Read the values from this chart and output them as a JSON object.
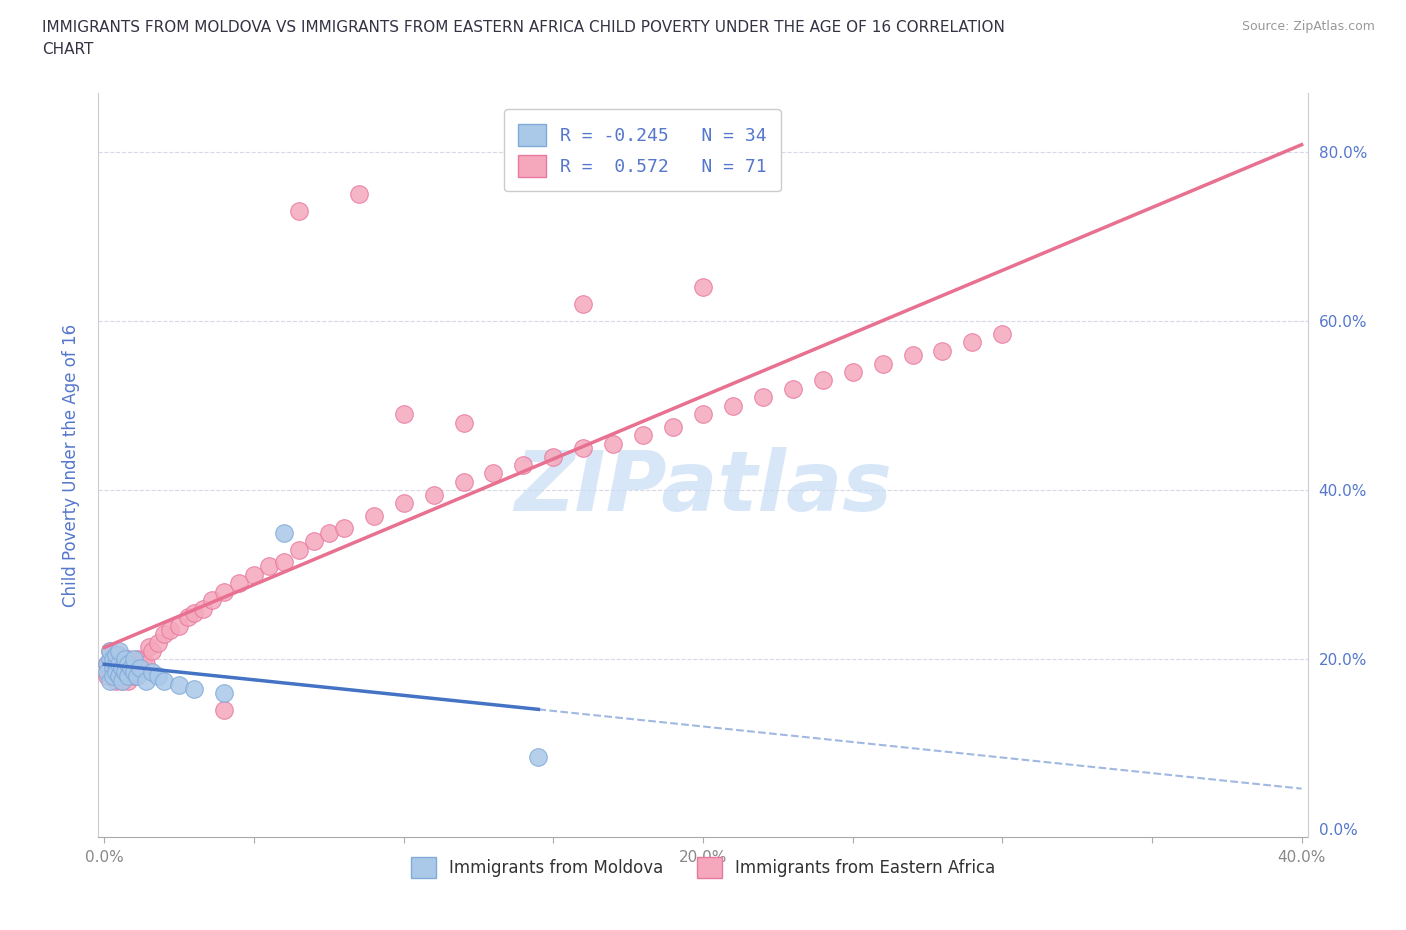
{
  "title_line1": "IMMIGRANTS FROM MOLDOVA VS IMMIGRANTS FROM EASTERN AFRICA CHILD POVERTY UNDER THE AGE OF 16 CORRELATION",
  "title_line2": "CHART",
  "source": "Source: ZipAtlas.com",
  "ylabel": "Child Poverty Under the Age of 16",
  "xlim": [
    -0.002,
    0.402
  ],
  "ylim": [
    -0.01,
    0.87
  ],
  "xticks": [
    0.0,
    0.05,
    0.1,
    0.15,
    0.2,
    0.25,
    0.3,
    0.35,
    0.4
  ],
  "xticklabels": [
    "0.0%",
    "",
    "",
    "",
    "20.0%",
    "",
    "",
    "",
    "40.0%"
  ],
  "yticks": [
    0.0,
    0.2,
    0.4,
    0.6,
    0.8
  ],
  "yticklabels": [
    "0.0%",
    "20.0%",
    "40.0%",
    "60.0%",
    "80.0%"
  ],
  "moldova_fill": "#aac8e8",
  "moldova_edge": "#80aad8",
  "eastern_fill": "#f5a8bc",
  "eastern_edge": "#e878a0",
  "line_moldova": "#4472c4",
  "line_eastern": "#e87090",
  "legend_text_1": "R = -0.245   N = 34",
  "legend_text_2": "R =  0.572   N = 71",
  "watermark": "ZIPatlas",
  "watermark_color": "#c8ddf5",
  "grid_color": "#d8d8e8",
  "tick_color": "#888888",
  "axis_color": "#5577cc",
  "title_color": "#333344",
  "background": "#ffffff",
  "moldova_x": [
    0.001,
    0.001,
    0.002,
    0.002,
    0.002,
    0.003,
    0.003,
    0.003,
    0.004,
    0.004,
    0.004,
    0.005,
    0.005,
    0.005,
    0.006,
    0.006,
    0.007,
    0.007,
    0.008,
    0.008,
    0.009,
    0.01,
    0.01,
    0.011,
    0.012,
    0.014,
    0.016,
    0.018,
    0.02,
    0.025,
    0.03,
    0.04,
    0.06,
    0.145
  ],
  "moldova_y": [
    0.195,
    0.185,
    0.2,
    0.175,
    0.21,
    0.19,
    0.2,
    0.18,
    0.195,
    0.205,
    0.185,
    0.195,
    0.18,
    0.21,
    0.19,
    0.175,
    0.2,
    0.185,
    0.195,
    0.18,
    0.19,
    0.185,
    0.2,
    0.18,
    0.19,
    0.175,
    0.185,
    0.18,
    0.175,
    0.17,
    0.165,
    0.16,
    0.35,
    0.085
  ],
  "eastern_x": [
    0.001,
    0.001,
    0.002,
    0.002,
    0.003,
    0.003,
    0.004,
    0.004,
    0.005,
    0.005,
    0.006,
    0.006,
    0.007,
    0.007,
    0.008,
    0.008,
    0.009,
    0.01,
    0.01,
    0.011,
    0.012,
    0.013,
    0.014,
    0.015,
    0.016,
    0.018,
    0.02,
    0.022,
    0.025,
    0.028,
    0.03,
    0.033,
    0.036,
    0.04,
    0.045,
    0.05,
    0.055,
    0.06,
    0.065,
    0.07,
    0.075,
    0.08,
    0.09,
    0.1,
    0.11,
    0.12,
    0.13,
    0.14,
    0.15,
    0.16,
    0.17,
    0.18,
    0.19,
    0.2,
    0.21,
    0.22,
    0.23,
    0.24,
    0.25,
    0.26,
    0.27,
    0.28,
    0.29,
    0.3,
    0.065,
    0.1,
    0.2,
    0.16,
    0.085,
    0.04,
    0.12
  ],
  "eastern_y": [
    0.195,
    0.18,
    0.21,
    0.185,
    0.2,
    0.19,
    0.195,
    0.175,
    0.205,
    0.185,
    0.2,
    0.175,
    0.19,
    0.185,
    0.2,
    0.175,
    0.19,
    0.195,
    0.18,
    0.2,
    0.185,
    0.2,
    0.195,
    0.215,
    0.21,
    0.22,
    0.23,
    0.235,
    0.24,
    0.25,
    0.255,
    0.26,
    0.27,
    0.28,
    0.29,
    0.3,
    0.31,
    0.315,
    0.33,
    0.34,
    0.35,
    0.355,
    0.37,
    0.385,
    0.395,
    0.41,
    0.42,
    0.43,
    0.44,
    0.45,
    0.455,
    0.465,
    0.475,
    0.49,
    0.5,
    0.51,
    0.52,
    0.53,
    0.54,
    0.55,
    0.56,
    0.565,
    0.575,
    0.585,
    0.73,
    0.49,
    0.64,
    0.62,
    0.75,
    0.14,
    0.48
  ]
}
